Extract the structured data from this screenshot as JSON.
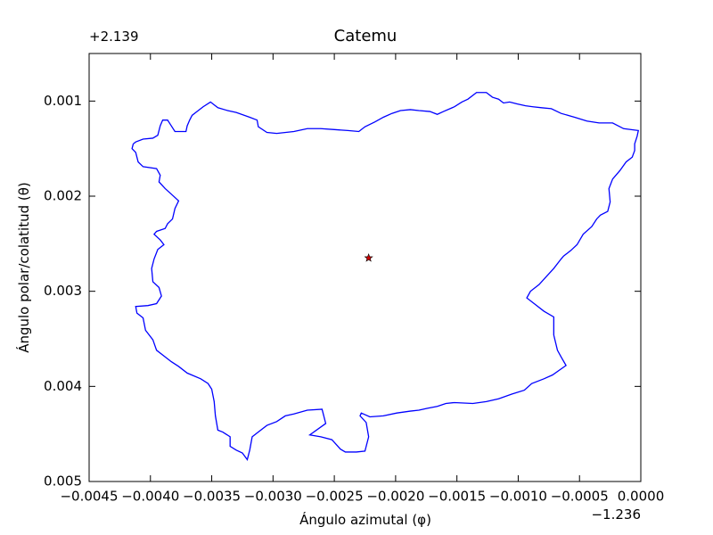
{
  "chart_data": {
    "type": "line",
    "title": "Catemu",
    "xlabel": "Ángulo azimutal (φ)",
    "ylabel": "Ángulo polar/colatitud (θ)",
    "x_offset_label": "−1.236",
    "y_offset_label": "+2.139",
    "color": "#0000ff",
    "x": [
      -0.00414,
      -0.00415,
      -0.00412,
      -0.0041,
      -0.00406,
      -0.00395,
      -0.00392,
      -0.00393,
      -0.00388,
      -0.00382,
      -0.00377,
      -0.0038,
      -0.00382,
      -0.00386,
      -0.00388,
      -0.00395,
      -0.00397,
      -0.00392,
      -0.00389,
      -0.00394,
      -0.00397,
      -0.00399,
      -0.00398,
      -0.00393,
      -0.00391,
      -0.00395,
      -0.00402,
      -0.00412,
      -0.00411,
      -0.00406,
      -0.00404,
      -0.00398,
      -0.00395,
      -0.00388,
      -0.00383,
      -0.00377,
      -0.0037,
      -0.00359,
      -0.00353,
      -0.0035,
      -0.00348,
      -0.00347,
      -0.00345,
      -0.00341,
      -0.00335,
      -0.00335,
      -0.0033,
      -0.00325,
      -0.00321,
      -0.00319,
      -0.00317,
      -0.00312,
      -0.00305,
      -0.00297,
      -0.0029,
      -0.00283,
      -0.00272,
      -0.0026,
      -0.00257,
      -0.0027,
      -0.00261,
      -0.00252,
      -0.00245,
      -0.00241,
      -0.00232,
      -0.00225,
      -0.00222,
      -0.00224,
      -0.00229,
      -0.00228,
      -0.00221,
      -0.0021,
      -0.00199,
      -0.00188,
      -0.00181,
      -0.00174,
      -0.00166,
      -0.00159,
      -0.00152,
      -0.00137,
      -0.00126,
      -0.00116,
      -0.00105,
      -0.00095,
      -0.00089,
      -0.00079,
      -0.00072,
      -0.00061,
      -0.00065,
      -0.00068,
      -0.00071,
      -0.00071,
      -0.00079,
      -0.00087,
      -0.00093,
      -0.0009,
      -0.00083,
      -0.00076,
      -0.00071,
      -0.00065,
      -0.00063,
      -0.00057,
      -0.00052,
      -0.00047,
      -0.0004,
      -0.00036,
      -0.00033,
      -0.00027,
      -0.00025,
      -0.00026,
      -0.00023,
      -0.00017,
      -0.00012,
      -7e-05,
      -5e-05,
      -5e-05,
      -3e-05,
      -2e-05,
      -0.00014,
      -0.00023,
      -0.00034,
      -0.00044,
      -0.00054,
      -0.00065,
      -0.00073,
      -0.00081,
      -0.00088,
      -0.00094,
      -0.00101,
      -0.00107,
      -0.00112,
      -0.00116,
      -0.00121,
      -0.00126,
      -0.00134,
      -0.00141,
      -0.00146,
      -0.00152,
      -0.00161,
      -0.00166,
      -0.00172,
      -0.00181,
      -0.00188,
      -0.00196,
      -0.00203,
      -0.0021,
      -0.00217,
      -0.00225,
      -0.0023,
      -0.00239,
      -0.0025,
      -0.00261,
      -0.00272,
      -0.00283,
      -0.00297,
      -0.00305,
      -0.00312,
      -0.00313,
      -0.00319,
      -0.0033,
      -0.00337,
      -0.00345,
      -0.00351,
      -0.00357,
      -0.00363,
      -0.00366,
      -0.00368,
      -0.0037,
      -0.00371,
      -0.0038,
      -0.00383,
      -0.00386,
      -0.0039,
      -0.00392,
      -0.00394,
      -0.00398,
      -0.00406,
      -0.00412,
      -0.00414
    ],
    "values": [
      0.00145,
      0.0015,
      0.00154,
      0.00164,
      0.00169,
      0.00171,
      0.00178,
      0.00185,
      0.00192,
      0.00199,
      0.00205,
      0.00213,
      0.00224,
      0.00229,
      0.00234,
      0.00237,
      0.0024,
      0.00246,
      0.00251,
      0.00256,
      0.00266,
      0.00276,
      0.0029,
      0.00296,
      0.00305,
      0.00313,
      0.00315,
      0.00316,
      0.00323,
      0.00328,
      0.00341,
      0.00351,
      0.00362,
      0.00369,
      0.00374,
      0.00379,
      0.00386,
      0.00392,
      0.00397,
      0.00403,
      0.00416,
      0.00431,
      0.00446,
      0.00448,
      0.00453,
      0.00463,
      0.00467,
      0.0047,
      0.00477,
      0.00467,
      0.00453,
      0.00448,
      0.00441,
      0.00437,
      0.00431,
      0.00429,
      0.00425,
      0.00424,
      0.00439,
      0.00451,
      0.00453,
      0.00456,
      0.00466,
      0.00469,
      0.00469,
      0.00468,
      0.00453,
      0.00438,
      0.00431,
      0.00428,
      0.00432,
      0.00431,
      0.00428,
      0.00426,
      0.00425,
      0.00423,
      0.00421,
      0.00418,
      0.00417,
      0.00418,
      0.00416,
      0.00413,
      0.00408,
      0.00404,
      0.00397,
      0.00392,
      0.00388,
      0.00378,
      0.00369,
      0.00362,
      0.00346,
      0.00327,
      0.00321,
      0.00313,
      0.00307,
      0.003,
      0.00293,
      0.00283,
      0.00276,
      0.00266,
      0.00263,
      0.00257,
      0.00251,
      0.0024,
      0.00232,
      0.00224,
      0.0022,
      0.00216,
      0.00206,
      0.00192,
      0.00182,
      0.00173,
      0.00164,
      0.00159,
      0.00152,
      0.00145,
      0.00137,
      0.00131,
      0.00129,
      0.00123,
      0.00123,
      0.00121,
      0.00117,
      0.00113,
      0.00108,
      0.00107,
      0.00106,
      0.00105,
      0.00103,
      0.00101,
      0.00102,
      0.00098,
      0.00096,
      0.00091,
      0.00091,
      0.00098,
      0.00101,
      0.00106,
      0.00111,
      0.00114,
      0.00111,
      0.0011,
      0.00109,
      0.0011,
      0.00113,
      0.00117,
      0.00122,
      0.00127,
      0.00132,
      0.00131,
      0.0013,
      0.00129,
      0.00129,
      0.00132,
      0.00134,
      0.00133,
      0.00127,
      0.0012,
      0.00117,
      0.00112,
      0.0011,
      0.00107,
      0.00101,
      0.00106,
      0.00112,
      0.00115,
      0.0012,
      0.00126,
      0.00132,
      0.00132,
      0.00126,
      0.0012,
      0.0012,
      0.00126,
      0.00136,
      0.00139,
      0.0014,
      0.00143,
      0.00145
    ],
    "star": {
      "x": -0.00222,
      "y": 0.00265,
      "color": "#cc0000"
    },
    "xlim": [
      -0.0045,
      0.0
    ],
    "ylim": [
      0.005,
      0.0005
    ],
    "xticks": [
      {
        "value": -0.0045,
        "label": "−0.0045"
      },
      {
        "value": -0.004,
        "label": "−0.0040"
      },
      {
        "value": -0.0035,
        "label": "−0.0035"
      },
      {
        "value": -0.003,
        "label": "−0.0030"
      },
      {
        "value": -0.0025,
        "label": "−0.0025"
      },
      {
        "value": -0.002,
        "label": "−0.0020"
      },
      {
        "value": -0.0015,
        "label": "−0.0015"
      },
      {
        "value": -0.001,
        "label": "−0.0010"
      },
      {
        "value": -0.0005,
        "label": "−0.0005"
      },
      {
        "value": 0.0,
        "label": "0.0000"
      }
    ],
    "yticks": [
      0.001,
      0.002,
      0.003,
      0.004,
      0.005
    ]
  }
}
